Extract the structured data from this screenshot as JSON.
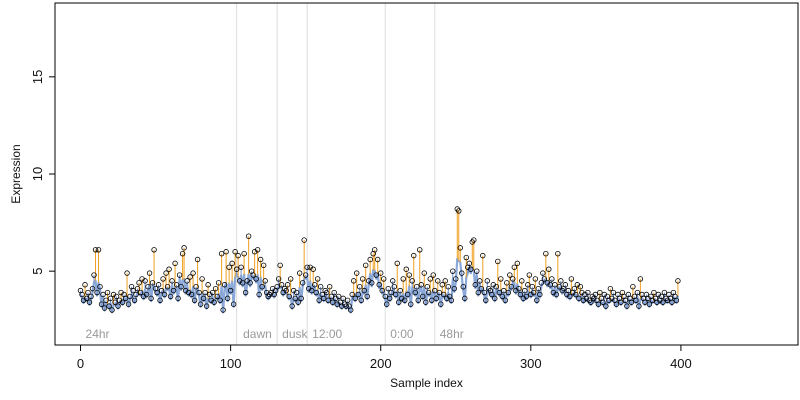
{
  "chart_data": {
    "type": "scatter",
    "title": "",
    "xlabel": "Sample index",
    "ylabel": "Expression",
    "xlim": [
      -17,
      478
    ],
    "ylim": [
      1.2,
      18.8
    ],
    "x_ticks": [
      0,
      100,
      200,
      300,
      400
    ],
    "y_ticks": [
      5,
      10,
      15
    ],
    "grid": false,
    "colors": {
      "baseline_line": "#8aa8d8",
      "up_segment": "#f0a020",
      "down_segment": "#6f8fd0",
      "point_stroke": "#000000",
      "region_line": "#dddddd",
      "region_label": "#9a9a9a"
    },
    "region_markers": [
      {
        "x": 104,
        "label": ""
      },
      {
        "x": 131,
        "label": ""
      },
      {
        "x": 151,
        "label": ""
      },
      {
        "x": 203,
        "label": ""
      },
      {
        "x": 236,
        "label": ""
      }
    ],
    "region_labels": [
      {
        "x": 2,
        "label": "24hr"
      },
      {
        "x": 107,
        "label": "dawn"
      },
      {
        "x": 133,
        "label": "dusk"
      },
      {
        "x": 153,
        "label": "12:00"
      },
      {
        "x": 205,
        "label": "0:00"
      },
      {
        "x": 238,
        "label": "48hr"
      }
    ],
    "series": [
      {
        "y": [
          4.0,
          3.8,
          3.5,
          4.3,
          3.6,
          3.9,
          3.4,
          3.7,
          4.1,
          4.8,
          6.1,
          3.9,
          6.1,
          4.2,
          3.3,
          3.8,
          3.1,
          3.5,
          3.9,
          3.2,
          3.6,
          3.0,
          3.8,
          3.4,
          3.7,
          3.2,
          3.5,
          3.9,
          3.4,
          3.8,
          3.6,
          4.9,
          3.3,
          3.7,
          4.2,
          4.0,
          3.5,
          3.8,
          4.1,
          4.4,
          3.9,
          4.6,
          3.7,
          4.5,
          3.8,
          4.2,
          4.9,
          3.6,
          4.4,
          6.1,
          4.1,
          3.9,
          4.3,
          3.5,
          4.0,
          4.6,
          3.8,
          4.9,
          4.2,
          5.1,
          3.7,
          4.5,
          4.0,
          5.4,
          4.3,
          3.6,
          4.8,
          4.2,
          5.9,
          6.2,
          4.0,
          4.5,
          3.9,
          4.7,
          3.8,
          4.9,
          3.5,
          4.2,
          5.6,
          3.9,
          3.3,
          4.6,
          3.6,
          3.9,
          3.2,
          4.3,
          3.8,
          3.5,
          3.9,
          3.4,
          4.1,
          3.7,
          4.4,
          3.5,
          5.9,
          3.0,
          4.3,
          6.0,
          3.6,
          5.2,
          4.0,
          5.4,
          3.3,
          6.0,
          5.1,
          5.8,
          4.5,
          5.2,
          4.4,
          5.9,
          3.9,
          4.5,
          6.8,
          4.4,
          5.0,
          4.8,
          6.0,
          4.6,
          6.1,
          3.8,
          5.6,
          4.2,
          5.3,
          4.5,
          3.9,
          3.7,
          3.8,
          3.9,
          4.1,
          3.8,
          4.0,
          4.2,
          4.6,
          5.3,
          4.3,
          3.9,
          4.1,
          4.0,
          4.3,
          3.7,
          4.6,
          3.2,
          4.0,
          3.6,
          3.9,
          3.4,
          4.9,
          3.6,
          4.4,
          6.6,
          4.8,
          5.2,
          4.1,
          5.2,
          4.0,
          5.1,
          4.3,
          3.9,
          4.6,
          3.5,
          4.2,
          3.8,
          3.6,
          4.0,
          3.9,
          3.5,
          4.2,
          3.7,
          3.4,
          3.9,
          3.6,
          3.3,
          3.7,
          3.4,
          3.2,
          3.6,
          3.3,
          3.2,
          3.5,
          3.2,
          3.0,
          3.8,
          4.5,
          3.6,
          4.9,
          3.8,
          4.2,
          3.5,
          4.6,
          4.0,
          5.3,
          3.7,
          4.5,
          5.6,
          4.4,
          5.9,
          6.1,
          4.8,
          5.6,
          4.3,
          4.9,
          4.0,
          4.6,
          3.7,
          3.3,
          4.1,
          3.6,
          3.9,
          4.5,
          4.2,
          3.8,
          5.4,
          3.4,
          4.0,
          3.6,
          4.6,
          3.5,
          5.1,
          3.8,
          4.8,
          3.3,
          4.5,
          5.8,
          3.9,
          4.2,
          3.5,
          6.1,
          4.3,
          3.7,
          4.9,
          3.4,
          4.2,
          3.9,
          4.6,
          3.5,
          4.8,
          4.0,
          3.6,
          4.5,
          3.9,
          3.3,
          4.3,
          3.8,
          4.5,
          3.6,
          4.2,
          3.7,
          3.5,
          5.0,
          4.1,
          4.6,
          8.2,
          8.1,
          6.2,
          4.9,
          4.2,
          3.6,
          5.7,
          5.2,
          5.4,
          5.1,
          6.5,
          6.6,
          4.3,
          5.0,
          3.9,
          4.5,
          4.1,
          5.8,
          3.9,
          3.5,
          4.5,
          4.1,
          4.0,
          3.8,
          4.3,
          3.6,
          4.2,
          5.5,
          3.9,
          4.6,
          3.7,
          4.0,
          3.5,
          4.4,
          3.9,
          4.8,
          4.2,
          4.6,
          5.2,
          4.0,
          5.4,
          4.1,
          3.8,
          4.5,
          3.6,
          4.0,
          3.7,
          4.3,
          4.8,
          3.8,
          4.2,
          3.9,
          4.6,
          3.5,
          4.1,
          3.8,
          4.4,
          4.9,
          4.6,
          5.9,
          4.4,
          5.1,
          4.3,
          4.6,
          3.9,
          4.3,
          3.8,
          5.9,
          4.2,
          4.5,
          4.0,
          4.1,
          4.3,
          3.8,
          4.0,
          3.7,
          4.6,
          3.9,
          4.1,
          3.8,
          4.3,
          3.6,
          4.2,
          3.9,
          3.5,
          3.8,
          3.6,
          3.9,
          3.5,
          3.4,
          3.7,
          3.6,
          3.8,
          3.5,
          3.3,
          3.9,
          3.6,
          3.4,
          3.8,
          3.2,
          3.7,
          3.5,
          4.1,
          3.6,
          3.9,
          3.5,
          3.3,
          3.8,
          3.6,
          3.4,
          3.9,
          3.7,
          3.5,
          3.2,
          3.8,
          3.6,
          3.4,
          4.2,
          3.7,
          3.5,
          3.9,
          3.2,
          4.6,
          3.8,
          3.6,
          3.4,
          3.8,
          3.6,
          3.3,
          3.7,
          3.5,
          3.9,
          3.6,
          3.4,
          3.8,
          3.5,
          3.7,
          3.4,
          3.9,
          3.6,
          3.5,
          3.8,
          3.6,
          3.4,
          3.9,
          3.7,
          3.5,
          4.5
        ]
      }
    ]
  }
}
